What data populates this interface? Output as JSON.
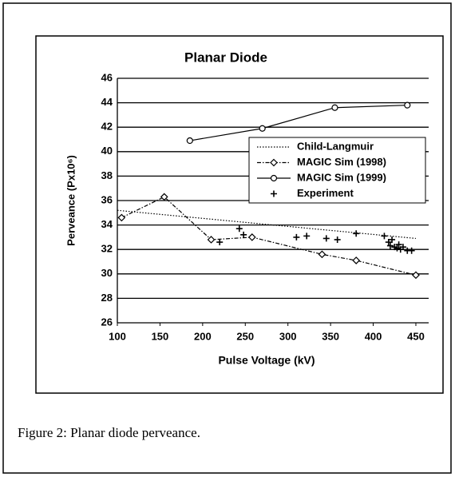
{
  "chart_data": {
    "type": "line",
    "title": "Planar Diode",
    "x_label": "Pulse Voltage (kV)",
    "y_label": "Perveance (Px10⁶)",
    "xlim": [
      100,
      465
    ],
    "ylim": [
      26,
      46
    ],
    "xticks": [
      100,
      150,
      200,
      250,
      300,
      350,
      400,
      450
    ],
    "yticks": [
      26,
      28,
      30,
      32,
      34,
      36,
      38,
      40,
      42,
      44,
      46
    ],
    "grid": true,
    "legend": "upper right",
    "series": [
      {
        "name": "Child-Langmuir",
        "color": "#000000",
        "marker": "none",
        "line_style": "dotted",
        "x": [
          100,
          450
        ],
        "values": [
          35.2,
          32.9
        ]
      },
      {
        "name": "MAGIC Sim (1998)",
        "color": "#000000",
        "marker": "diamond",
        "line_style": "dashdot",
        "x": [
          105,
          155,
          210,
          258,
          340,
          380,
          450
        ],
        "values": [
          34.6,
          36.3,
          32.8,
          33.0,
          31.6,
          31.1,
          29.9
        ]
      },
      {
        "name": "MAGIC Sim (1999)",
        "color": "#000000",
        "marker": "circle",
        "line_style": "solid",
        "x": [
          185,
          270,
          355,
          440
        ],
        "values": [
          40.9,
          41.9,
          43.6,
          43.8
        ]
      },
      {
        "name": "Experiment",
        "color": "#000000",
        "marker": "plus",
        "line_style": "none",
        "x": [
          220,
          243,
          248,
          310,
          322,
          345,
          358,
          380,
          413,
          418,
          420,
          422,
          425,
          428,
          430,
          432,
          435,
          440,
          445
        ],
        "values": [
          32.6,
          33.7,
          33.2,
          33.0,
          33.1,
          32.9,
          32.8,
          33.3,
          33.1,
          32.6,
          32.3,
          32.8,
          32.2,
          32.1,
          32.4,
          32.0,
          32.2,
          31.9,
          31.9
        ]
      }
    ]
  },
  "caption": "Figure 2: Planar diode perveance."
}
